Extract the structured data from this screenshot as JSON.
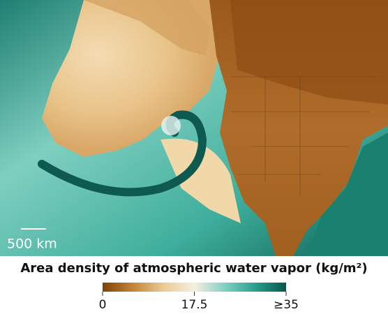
{
  "map": {
    "scale_bar": "500 km"
  },
  "legend": {
    "title": "Area density of atmospheric water vapor (kg/m²)",
    "range": [
      0,
      35
    ],
    "ticks": [
      0,
      17.5,
      {
        "value": 35,
        "label": "≥35"
      }
    ],
    "colors": [
      "#7f4206",
      "#c4843a",
      "#eccb95",
      "#f6efe0",
      "#7fd0c4",
      "#2a9e8e",
      "#07564b"
    ]
  }
}
